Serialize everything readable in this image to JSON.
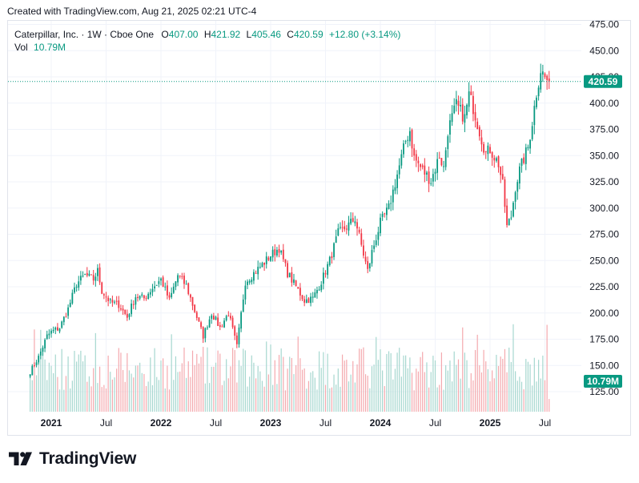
{
  "caption": "Created with TradingView.com, Aug 21, 2025 02:21 UTC-4",
  "legend": {
    "symbol": "Caterpillar, Inc. · 1W · Cboe One",
    "o_label": "O",
    "o_value": "407.00",
    "h_label": "H",
    "h_value": "421.92",
    "l_label": "L",
    "l_value": "405.46",
    "c_label": "C",
    "c_value": "420.59",
    "change": "+12.80 (+3.14%)",
    "vol_label": "Vol",
    "vol_value": "10.79M"
  },
  "brand": "TradingView",
  "colors": {
    "up": "#089981",
    "down": "#f23645",
    "vol_up": "#a6d7cf",
    "vol_down": "#f4a9ae",
    "grid": "#f0f3fa",
    "axis_text": "#131722"
  },
  "chart_data": {
    "type": "candlestick",
    "title": "Caterpillar, Inc. · 1W · Cboe One",
    "ylim": [
      100,
      480
    ],
    "y_ticks": [
      "475.00",
      "450.00",
      "425.00",
      "400.00",
      "375.00",
      "350.00",
      "325.00",
      "300.00",
      "275.00",
      "250.00",
      "225.00",
      "200.00",
      "175.00",
      "150.00",
      "125.00"
    ],
    "x_ticks": [
      "2021",
      "Jul",
      "2022",
      "Jul",
      "2023",
      "Jul",
      "2024",
      "Jul",
      "2025",
      "Jul"
    ],
    "x_tick_weeks": [
      0,
      26,
      52,
      78,
      104,
      130,
      156,
      182,
      208,
      234
    ],
    "first_week_offset": -10,
    "last_price": "420.59",
    "last_price_value": 420.59,
    "last_volume": "10.79M",
    "last_volume_value": 10.79,
    "volume_scale_max_millions": 80,
    "weekly_close_anchors": [
      [
        -10,
        144
      ],
      [
        -6,
        158
      ],
      [
        -2,
        178
      ],
      [
        0,
        182
      ],
      [
        4,
        186
      ],
      [
        8,
        204
      ],
      [
        12,
        228
      ],
      [
        16,
        236
      ],
      [
        20,
        232
      ],
      [
        22,
        240
      ],
      [
        24,
        221
      ],
      [
        28,
        210
      ],
      [
        32,
        208
      ],
      [
        36,
        196
      ],
      [
        40,
        216
      ],
      [
        44,
        214
      ],
      [
        48,
        224
      ],
      [
        52,
        232
      ],
      [
        56,
        212
      ],
      [
        60,
        236
      ],
      [
        64,
        226
      ],
      [
        68,
        202
      ],
      [
        72,
        178
      ],
      [
        76,
        200
      ],
      [
        80,
        186
      ],
      [
        84,
        200
      ],
      [
        88,
        168
      ],
      [
        92,
        230
      ],
      [
        96,
        238
      ],
      [
        100,
        246
      ],
      [
        104,
        255
      ],
      [
        108,
        262
      ],
      [
        112,
        238
      ],
      [
        116,
        225
      ],
      [
        120,
        212
      ],
      [
        124,
        214
      ],
      [
        128,
        230
      ],
      [
        132,
        250
      ],
      [
        136,
        276
      ],
      [
        140,
        282
      ],
      [
        144,
        290
      ],
      [
        148,
        256
      ],
      [
        150,
        240
      ],
      [
        152,
        258
      ],
      [
        156,
        286
      ],
      [
        160,
        300
      ],
      [
        164,
        332
      ],
      [
        168,
        364
      ],
      [
        170,
        374
      ],
      [
        172,
        348
      ],
      [
        176,
        336
      ],
      [
        180,
        326
      ],
      [
        184,
        350
      ],
      [
        186,
        338
      ],
      [
        188,
        374
      ],
      [
        192,
        398
      ],
      [
        196,
        386
      ],
      [
        198,
        408
      ],
      [
        200,
        396
      ],
      [
        204,
        366
      ],
      [
        206,
        352
      ],
      [
        208,
        356
      ],
      [
        212,
        342
      ],
      [
        214,
        322
      ],
      [
        216,
        282
      ],
      [
        218,
        292
      ],
      [
        220,
        320
      ],
      [
        222,
        336
      ],
      [
        226,
        358
      ],
      [
        228,
        382
      ],
      [
        230,
        410
      ],
      [
        232,
        432
      ],
      [
        234,
        424
      ],
      [
        236,
        420.59
      ]
    ],
    "weekly_volume_millions_range": [
      18,
      55
    ]
  }
}
